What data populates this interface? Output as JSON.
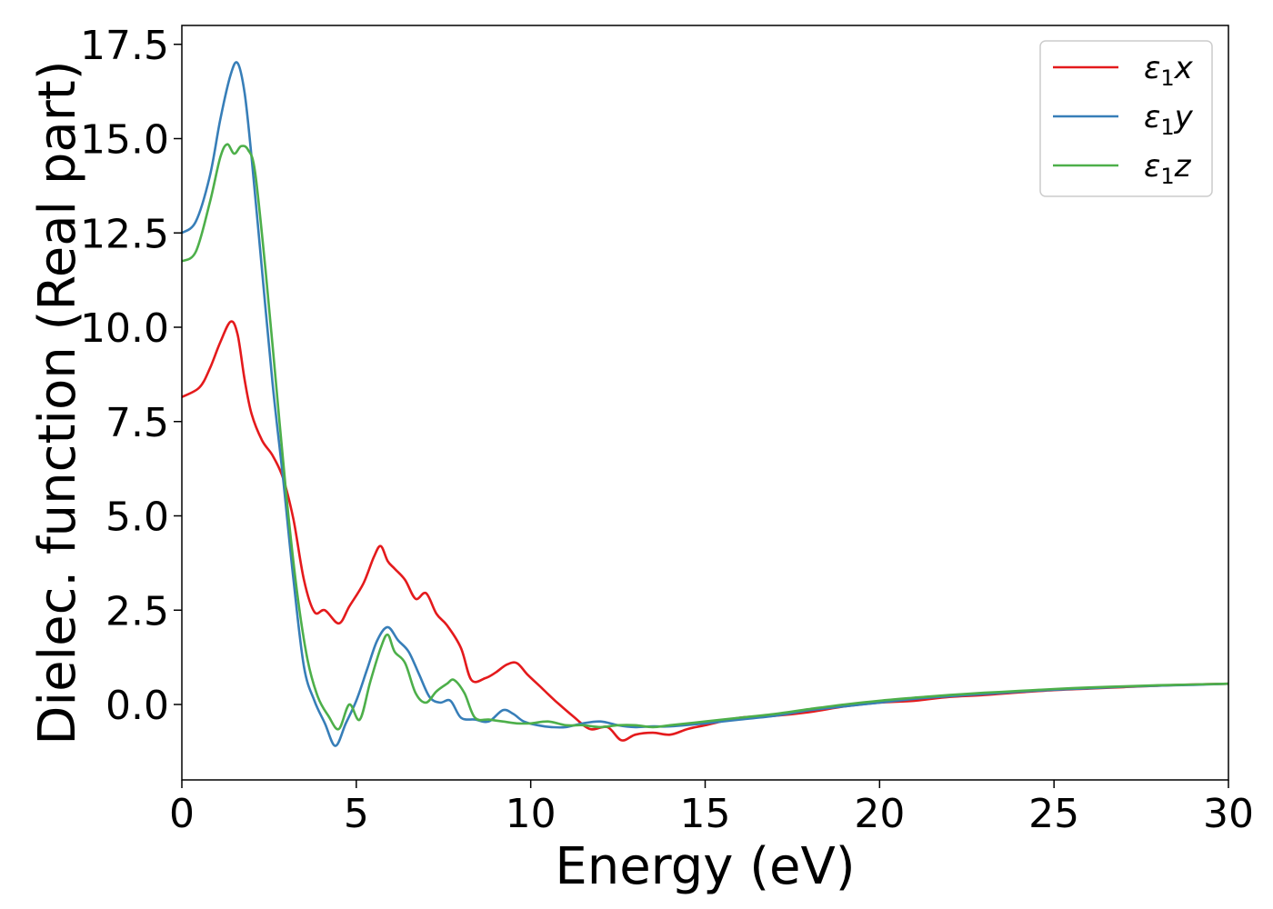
{
  "chart_data": {
    "type": "line",
    "title": "",
    "xlabel": "Energy (eV)",
    "ylabel": "Dielec. function (Real part)",
    "xlim": [
      0,
      30
    ],
    "ylim": [
      -2.0,
      18.0
    ],
    "xticks": [
      0,
      5,
      10,
      15,
      20,
      25,
      30
    ],
    "xtick_labels": [
      "0",
      "5",
      "10",
      "15",
      "20",
      "25",
      "30"
    ],
    "yticks": [
      0.0,
      2.5,
      5.0,
      7.5,
      10.0,
      12.5,
      15.0,
      17.5
    ],
    "ytick_labels": [
      "0.0",
      "2.5",
      "5.0",
      "7.5",
      "10.0",
      "12.5",
      "15.0",
      "17.5"
    ],
    "grid": false,
    "legend_position": "top-right",
    "series": [
      {
        "name": "ε₁x",
        "legend_base": "ε",
        "legend_sub": "1",
        "legend_axis": "x",
        "color": "#e41a1c",
        "x": [
          0,
          0.5,
          0.8,
          1.1,
          1.4,
          1.6,
          1.8,
          2.0,
          2.3,
          2.6,
          2.9,
          3.2,
          3.5,
          3.8,
          4.1,
          4.5,
          4.8,
          5.2,
          5.5,
          5.7,
          5.9,
          6.1,
          6.4,
          6.7,
          7.0,
          7.3,
          7.6,
          8.0,
          8.3,
          8.7,
          9.0,
          9.3,
          9.6,
          9.9,
          10.3,
          10.7,
          11.2,
          11.7,
          12.2,
          12.6,
          13.0,
          13.5,
          14.0,
          14.5,
          15.0,
          16.0,
          17.0,
          18.0,
          19.0,
          20.0,
          21.0,
          22.0,
          23.0,
          24.0,
          25.0,
          26.0,
          27.0,
          28.0,
          29.0,
          30.0
        ],
        "y": [
          8.15,
          8.4,
          8.9,
          9.6,
          10.15,
          9.8,
          8.6,
          7.7,
          7.0,
          6.6,
          6.0,
          4.9,
          3.3,
          2.45,
          2.5,
          2.15,
          2.6,
          3.2,
          3.9,
          4.2,
          3.8,
          3.6,
          3.3,
          2.8,
          2.95,
          2.4,
          2.1,
          1.5,
          0.65,
          0.7,
          0.85,
          1.05,
          1.1,
          0.8,
          0.45,
          0.1,
          -0.3,
          -0.65,
          -0.6,
          -0.95,
          -0.8,
          -0.75,
          -0.8,
          -0.65,
          -0.55,
          -0.35,
          -0.3,
          -0.2,
          -0.05,
          0.05,
          0.1,
          0.2,
          0.25,
          0.32,
          0.38,
          0.42,
          0.46,
          0.5,
          0.53,
          0.55
        ]
      },
      {
        "name": "ε₁y",
        "legend_base": "ε",
        "legend_sub": "1",
        "legend_axis": "y",
        "color": "#377eb8",
        "x": [
          0,
          0.4,
          0.8,
          1.1,
          1.4,
          1.6,
          1.8,
          2.0,
          2.3,
          2.6,
          2.9,
          3.2,
          3.5,
          3.8,
          4.1,
          4.4,
          4.7,
          5.0,
          5.3,
          5.6,
          5.9,
          6.2,
          6.5,
          6.8,
          7.1,
          7.4,
          7.7,
          8.0,
          8.4,
          8.8,
          9.2,
          9.5,
          9.8,
          10.2,
          10.6,
          11.0,
          11.5,
          12.0,
          12.5,
          13.0,
          13.5,
          14.0,
          15.0,
          16.0,
          17.0,
          18.0,
          19.0,
          20.0,
          21.0,
          22.0,
          23.0,
          24.0,
          25.0,
          26.0,
          27.0,
          28.0,
          29.0,
          30.0
        ],
        "y": [
          12.5,
          12.8,
          14.0,
          15.5,
          16.7,
          17.0,
          16.2,
          14.5,
          11.5,
          8.5,
          6.0,
          3.3,
          1.0,
          0.1,
          -0.5,
          -1.1,
          -0.5,
          0.1,
          0.9,
          1.7,
          2.05,
          1.7,
          1.4,
          0.8,
          0.2,
          0.05,
          0.1,
          -0.35,
          -0.4,
          -0.45,
          -0.15,
          -0.25,
          -0.45,
          -0.55,
          -0.6,
          -0.6,
          -0.5,
          -0.45,
          -0.55,
          -0.6,
          -0.58,
          -0.58,
          -0.5,
          -0.4,
          -0.3,
          -0.15,
          -0.05,
          0.05,
          0.15,
          0.22,
          0.28,
          0.34,
          0.39,
          0.43,
          0.47,
          0.5,
          0.52,
          0.55
        ]
      },
      {
        "name": "ε₁z",
        "legend_base": "ε",
        "legend_sub": "1",
        "legend_axis": "z",
        "color": "#4daf4a",
        "x": [
          0,
          0.4,
          0.8,
          1.1,
          1.3,
          1.5,
          1.7,
          1.9,
          2.1,
          2.4,
          2.7,
          3.0,
          3.3,
          3.6,
          3.9,
          4.2,
          4.5,
          4.8,
          5.1,
          5.4,
          5.7,
          5.9,
          6.1,
          6.4,
          6.7,
          7.0,
          7.3,
          7.6,
          7.8,
          8.1,
          8.4,
          8.8,
          9.2,
          9.6,
          10.0,
          10.5,
          11.0,
          11.5,
          12.0,
          12.5,
          13.0,
          13.5,
          14.0,
          15.0,
          16.0,
          17.0,
          18.0,
          19.0,
          20.0,
          21.0,
          22.0,
          23.0,
          24.0,
          25.0,
          26.0,
          27.0,
          28.0,
          29.0,
          30.0
        ],
        "y": [
          11.75,
          12.0,
          13.3,
          14.5,
          14.85,
          14.6,
          14.8,
          14.7,
          14.1,
          11.5,
          8.5,
          5.5,
          3.0,
          1.2,
          0.2,
          -0.3,
          -0.65,
          0.0,
          -0.4,
          0.6,
          1.5,
          1.85,
          1.4,
          1.1,
          0.3,
          0.05,
          0.35,
          0.55,
          0.65,
          0.3,
          -0.35,
          -0.4,
          -0.45,
          -0.5,
          -0.5,
          -0.45,
          -0.55,
          -0.55,
          -0.6,
          -0.55,
          -0.55,
          -0.6,
          -0.55,
          -0.45,
          -0.35,
          -0.25,
          -0.12,
          0.0,
          0.1,
          0.18,
          0.25,
          0.31,
          0.36,
          0.41,
          0.45,
          0.48,
          0.51,
          0.53,
          0.55
        ]
      }
    ]
  }
}
